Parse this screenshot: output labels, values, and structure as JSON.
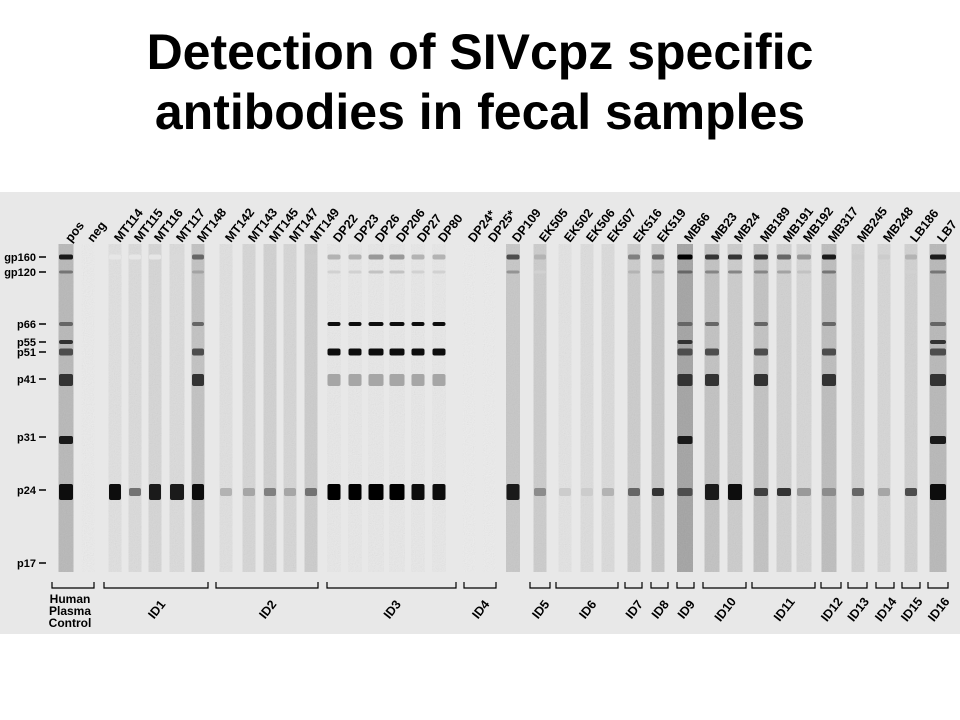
{
  "title": {
    "line1": "Detection of SIVcpz specific",
    "line2": "antibodies in fecal samples"
  },
  "markers": [
    "gp160",
    "gp120",
    "p66",
    "p55",
    "p51",
    "p41",
    "p31",
    "p24",
    "p17"
  ],
  "lanes": [
    {
      "label": "pos",
      "group": "control"
    },
    {
      "label": "neg",
      "group": "control"
    },
    {
      "label": "MT114",
      "group": "ID1"
    },
    {
      "label": "MT115",
      "group": "ID1"
    },
    {
      "label": "MT116",
      "group": "ID1"
    },
    {
      "label": "MT117",
      "group": "ID1"
    },
    {
      "label": "MT148",
      "group": "ID1"
    },
    {
      "label": "MT142",
      "group": "ID2"
    },
    {
      "label": "MT143",
      "group": "ID2"
    },
    {
      "label": "MT145",
      "group": "ID2"
    },
    {
      "label": "MT147",
      "group": "ID2"
    },
    {
      "label": "MT149",
      "group": "ID2"
    },
    {
      "label": "DP22",
      "group": "ID3"
    },
    {
      "label": "DP23",
      "group": "ID3"
    },
    {
      "label": "DP26",
      "group": "ID3"
    },
    {
      "label": "DP206",
      "group": "ID3"
    },
    {
      "label": "DP27",
      "group": "ID3"
    },
    {
      "label": "DP80",
      "group": "ID3"
    },
    {
      "label": "DP24*",
      "group": "ID4"
    },
    {
      "label": "DP25*",
      "group": "ID4"
    },
    {
      "label": "DP109",
      "group": "ID5"
    },
    {
      "label": "EK505",
      "group": "ID5"
    },
    {
      "label": "EK502",
      "group": "ID6"
    },
    {
      "label": "EK506",
      "group": "ID6"
    },
    {
      "label": "EK507",
      "group": "ID6"
    },
    {
      "label": "EK516",
      "group": "ID7"
    },
    {
      "label": "EK519",
      "group": "ID8"
    },
    {
      "label": "MB66",
      "group": "ID9"
    },
    {
      "label": "MB23",
      "group": "ID10"
    },
    {
      "label": "MB24",
      "group": "ID10"
    },
    {
      "label": "MB189",
      "group": "ID11"
    },
    {
      "label": "MB191",
      "group": "ID11"
    },
    {
      "label": "MB192",
      "group": "ID11"
    },
    {
      "label": "MB317",
      "group": "ID12"
    },
    {
      "label": "MB245",
      "group": "ID13"
    },
    {
      "label": "MB248",
      "group": "ID14"
    },
    {
      "label": "LB186",
      "group": "ID15"
    },
    {
      "label": "LB7",
      "group": "ID16"
    }
  ],
  "groups": [
    {
      "label": "Human Plasma Control",
      "lines": [
        "Human",
        "Plasma",
        "Control"
      ]
    },
    {
      "label": "ID1"
    },
    {
      "label": "ID2"
    },
    {
      "label": "ID3"
    },
    {
      "label": "ID4"
    },
    {
      "label": "ID5"
    },
    {
      "label": "ID6"
    },
    {
      "label": "ID7"
    },
    {
      "label": "ID8"
    },
    {
      "label": "ID9"
    },
    {
      "label": "ID10"
    },
    {
      "label": "ID11"
    },
    {
      "label": "ID12"
    },
    {
      "label": "ID13"
    },
    {
      "label": "ID14"
    },
    {
      "label": "ID15"
    },
    {
      "label": "ID16"
    }
  ]
}
